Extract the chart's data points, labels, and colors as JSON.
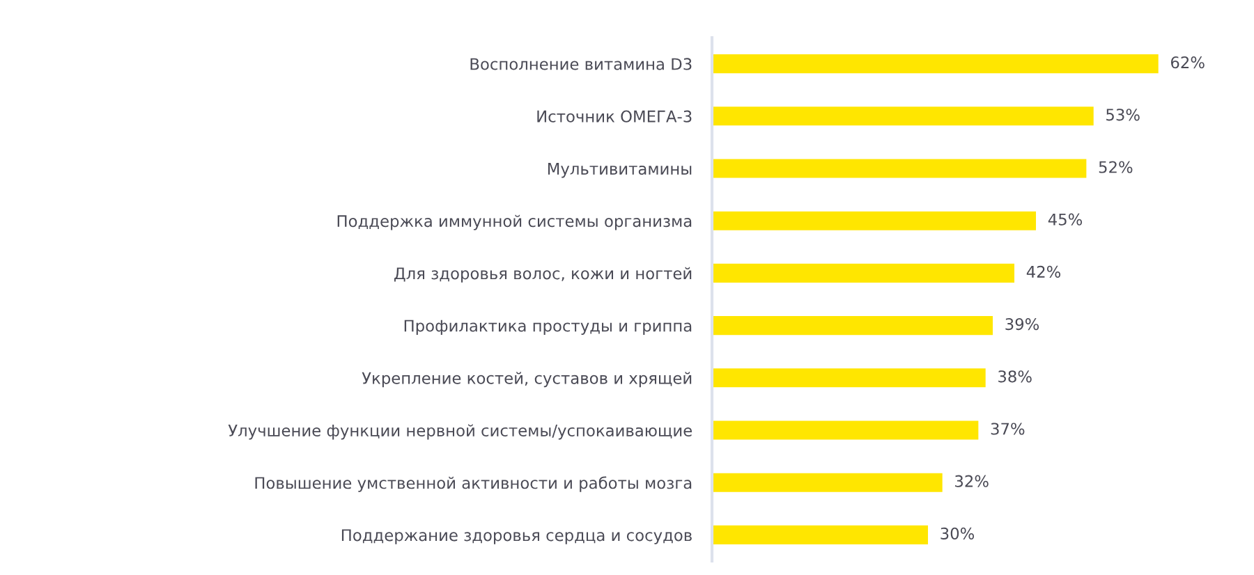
{
  "chart_data": {
    "type": "bar",
    "orientation": "horizontal",
    "categories": [
      "Восполнение витамина D3",
      "Источник ОМЕГА-3",
      "Мультивитамины",
      "Поддержка иммунной системы организма",
      "Для здоровья волос, кожи и ногтей",
      "Профилактика простуды и гриппа",
      "Укрепление костей, суставов и хрящей",
      "Улучшение функции нервной системы/успокаивающие",
      "Повышение умственной активности и работы мозга",
      "Поддержание здоровья сердца и сосудов"
    ],
    "values": [
      62,
      53,
      52,
      45,
      42,
      39,
      38,
      37,
      32,
      30
    ],
    "value_labels": [
      "62%",
      "53%",
      "52%",
      "45%",
      "42%",
      "39%",
      "38%",
      "37%",
      "32%",
      "30%"
    ],
    "color": "#ffe600",
    "tick_labels": "y"
  }
}
